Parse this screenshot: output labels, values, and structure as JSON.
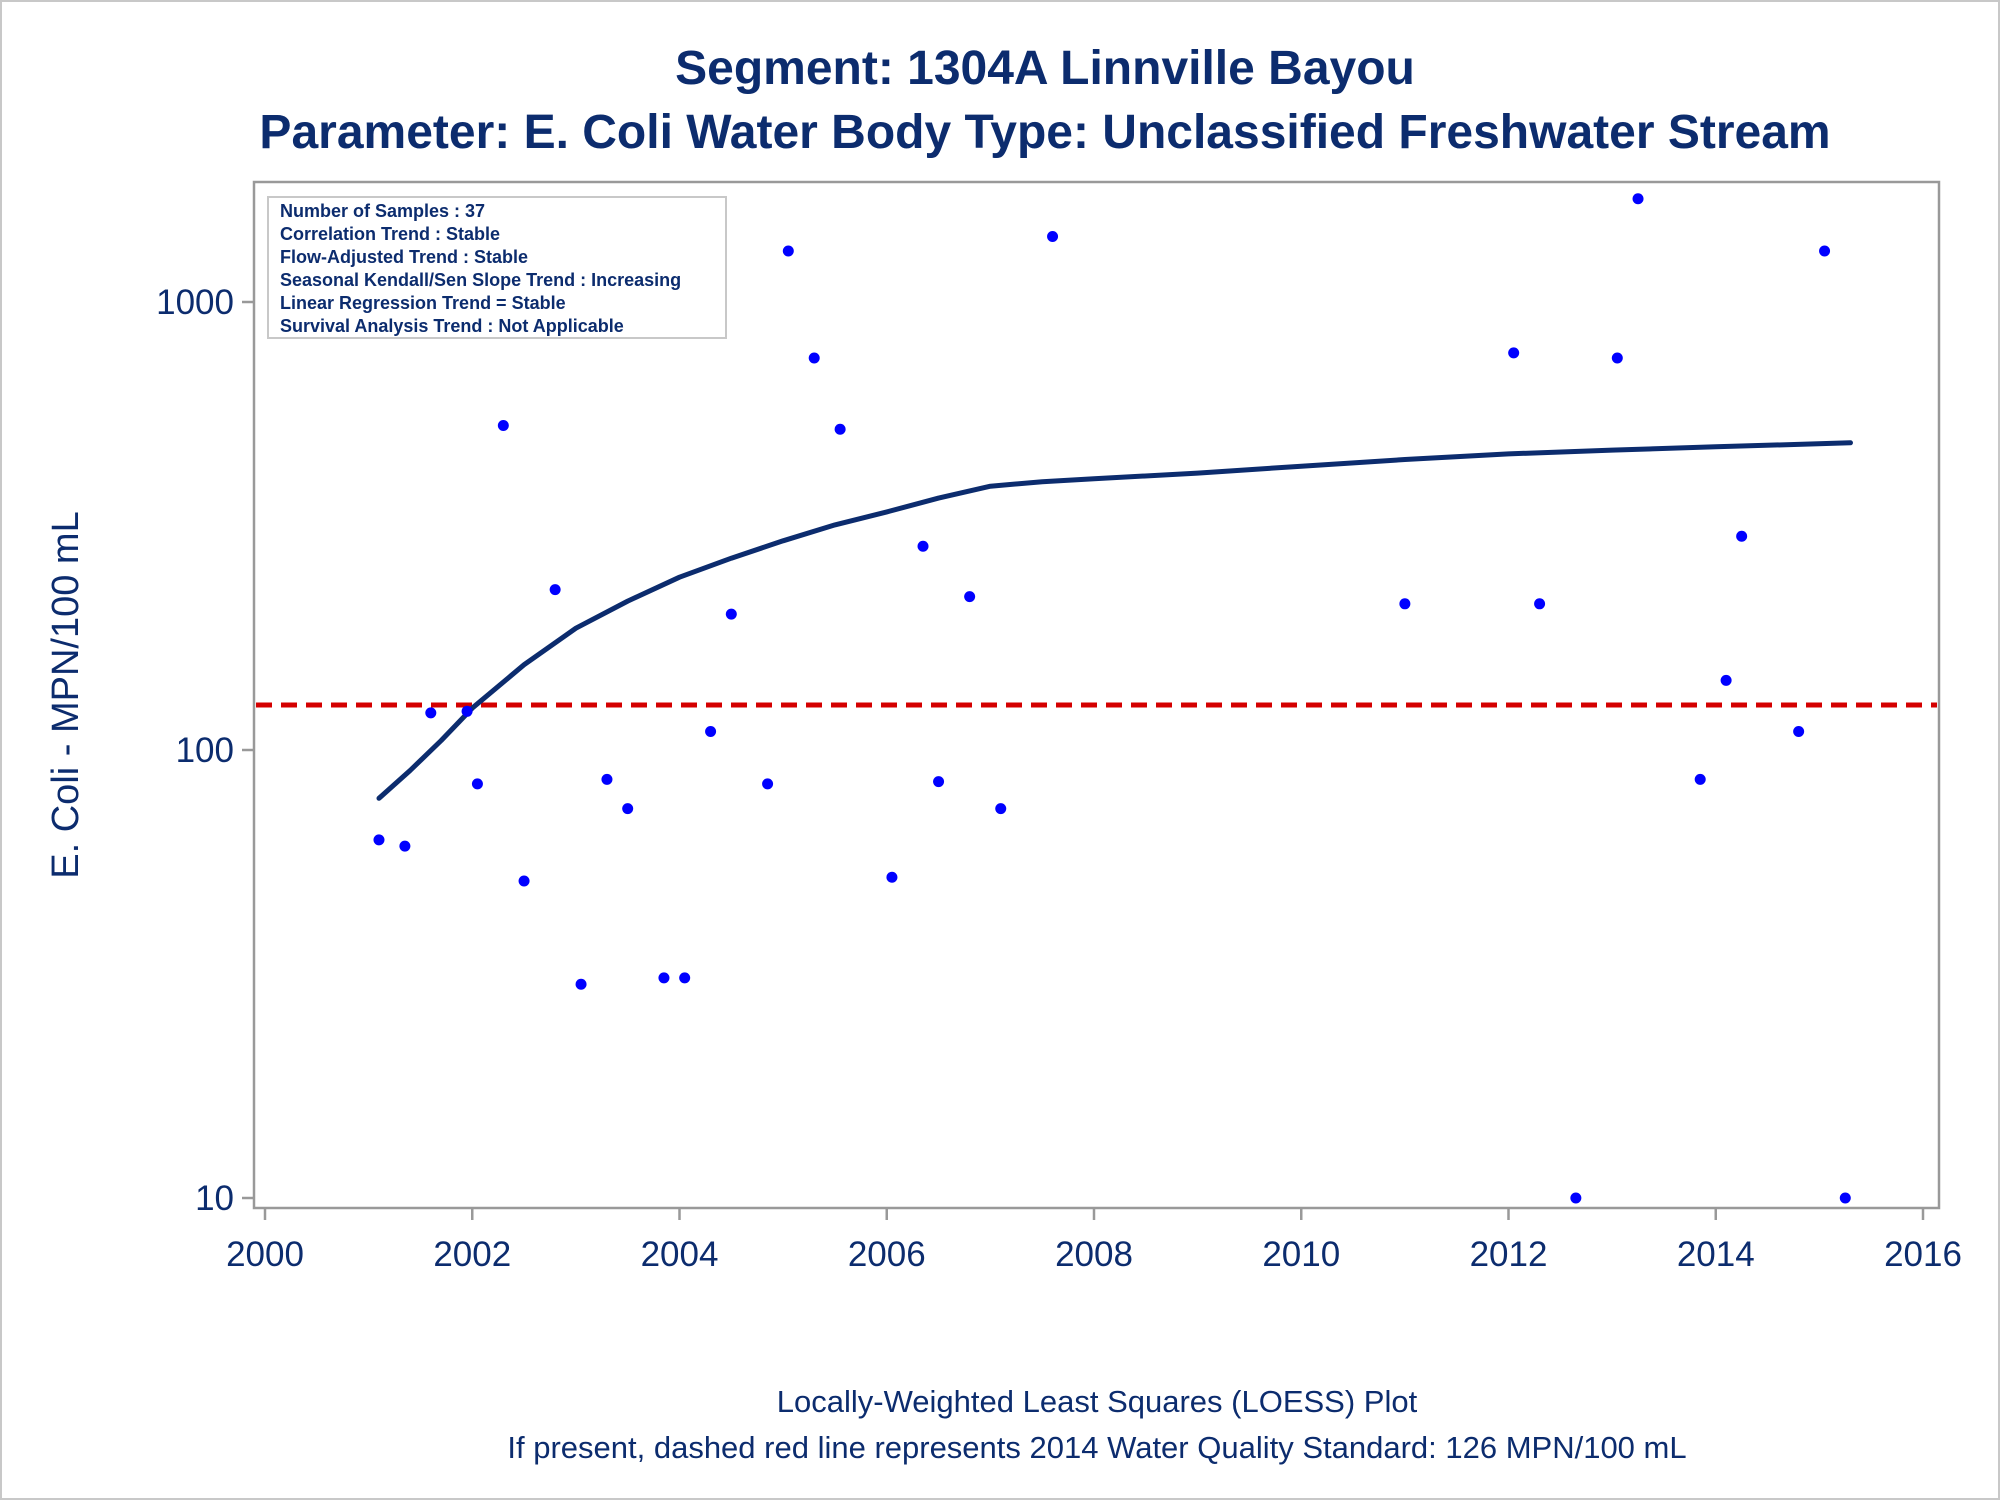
{
  "chart_data": {
    "type": "scatter",
    "title": "Segment: 1304A  Linnville Bayou",
    "subtitle": "Parameter: E. Coli   Water Body Type: Unclassified Freshwater Stream",
    "xlabel": "",
    "ylabel": "E. Coli - MPN/100 mL",
    "y_scale": "log",
    "xlim": [
      2000,
      2016
    ],
    "ylim": [
      10,
      1800
    ],
    "x_ticks": [
      "2000",
      "2002",
      "2004",
      "2006",
      "2008",
      "2010",
      "2012",
      "2014",
      "2016"
    ],
    "y_ticks": [
      "10",
      "100",
      "1000"
    ],
    "grid": false,
    "colors": {
      "points": "#0000ff",
      "loess": "#0c2c6e",
      "standard": "#d40000",
      "text": "#0c2c6e",
      "axis": "#999999"
    },
    "points": [
      {
        "x": 2001.1,
        "y": 63
      },
      {
        "x": 2001.35,
        "y": 61
      },
      {
        "x": 2001.6,
        "y": 121
      },
      {
        "x": 2001.95,
        "y": 122
      },
      {
        "x": 2002.05,
        "y": 84
      },
      {
        "x": 2002.3,
        "y": 530
      },
      {
        "x": 2002.5,
        "y": 51
      },
      {
        "x": 2002.8,
        "y": 228
      },
      {
        "x": 2003.05,
        "y": 30
      },
      {
        "x": 2003.3,
        "y": 86
      },
      {
        "x": 2003.5,
        "y": 74
      },
      {
        "x": 2003.85,
        "y": 31
      },
      {
        "x": 2004.05,
        "y": 31
      },
      {
        "x": 2004.3,
        "y": 110
      },
      {
        "x": 2004.5,
        "y": 201
      },
      {
        "x": 2004.85,
        "y": 84
      },
      {
        "x": 2005.05,
        "y": 1300
      },
      {
        "x": 2005.3,
        "y": 750
      },
      {
        "x": 2005.55,
        "y": 520
      },
      {
        "x": 2006.05,
        "y": 52
      },
      {
        "x": 2006.35,
        "y": 285
      },
      {
        "x": 2006.5,
        "y": 85
      },
      {
        "x": 2006.8,
        "y": 220
      },
      {
        "x": 2007.1,
        "y": 74
      },
      {
        "x": 2007.6,
        "y": 1400
      },
      {
        "x": 2011.0,
        "y": 212
      },
      {
        "x": 2012.05,
        "y": 770
      },
      {
        "x": 2012.3,
        "y": 212
      },
      {
        "x": 2012.65,
        "y": 10
      },
      {
        "x": 2013.05,
        "y": 750
      },
      {
        "x": 2013.25,
        "y": 1700
      },
      {
        "x": 2013.85,
        "y": 86
      },
      {
        "x": 2014.1,
        "y": 143
      },
      {
        "x": 2014.25,
        "y": 300
      },
      {
        "x": 2014.8,
        "y": 110
      },
      {
        "x": 2015.05,
        "y": 1300
      },
      {
        "x": 2015.25,
        "y": 10
      }
    ],
    "loess": [
      {
        "x": 2001.1,
        "y": 78
      },
      {
        "x": 2001.4,
        "y": 90
      },
      {
        "x": 2001.7,
        "y": 105
      },
      {
        "x": 2002.0,
        "y": 124
      },
      {
        "x": 2002.5,
        "y": 155
      },
      {
        "x": 2003.0,
        "y": 187
      },
      {
        "x": 2003.5,
        "y": 215
      },
      {
        "x": 2004.0,
        "y": 243
      },
      {
        "x": 2004.5,
        "y": 268
      },
      {
        "x": 2005.0,
        "y": 293
      },
      {
        "x": 2005.5,
        "y": 318
      },
      {
        "x": 2006.0,
        "y": 340
      },
      {
        "x": 2006.5,
        "y": 365
      },
      {
        "x": 2007.0,
        "y": 388
      },
      {
        "x": 2007.5,
        "y": 397
      },
      {
        "x": 2008.0,
        "y": 403
      },
      {
        "x": 2009.0,
        "y": 415
      },
      {
        "x": 2010.0,
        "y": 430
      },
      {
        "x": 2011.0,
        "y": 445
      },
      {
        "x": 2012.0,
        "y": 458
      },
      {
        "x": 2013.0,
        "y": 467
      },
      {
        "x": 2014.0,
        "y": 475
      },
      {
        "x": 2015.3,
        "y": 485
      }
    ],
    "reference_line": {
      "y": 126,
      "style": "dashed"
    },
    "inset": [
      "Number of Samples : 37",
      "Correlation Trend : Stable",
      "Flow-Adjusted Trend : Stable",
      "Seasonal Kendall/Sen Slope Trend : Increasing",
      "Linear Regression Trend = Stable",
      "Survival Analysis Trend : Not Applicable"
    ],
    "footnotes": [
      "Locally-Weighted Least Squares (LOESS) Plot",
      "If present, dashed red line represents 2014 Water Quality Standard: 126 MPN/100 mL"
    ]
  }
}
